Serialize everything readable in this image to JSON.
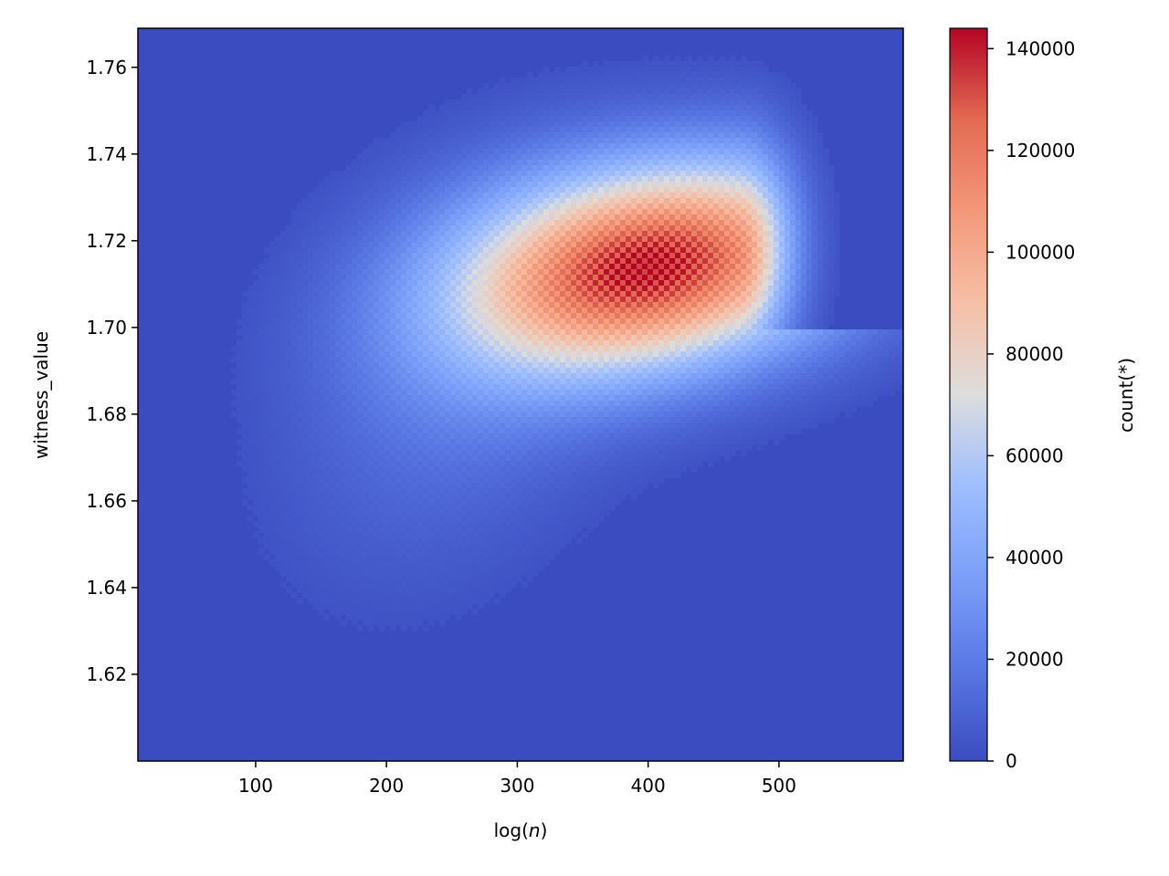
{
  "chart_data": {
    "type": "heatmap",
    "title": "",
    "xlabel": "log(n)",
    "xlabel_prefix": "log(",
    "xlabel_var": "n",
    "xlabel_suffix": ")",
    "ylabel": "witness_value",
    "xlim": [
      10,
      595
    ],
    "ylim": [
      1.6,
      1.769
    ],
    "x_ticks": [
      100,
      200,
      300,
      400,
      500
    ],
    "x_tick_labels": [
      "100",
      "200",
      "300",
      "400",
      "500"
    ],
    "y_ticks": [
      1.62,
      1.64,
      1.66,
      1.68,
      1.7,
      1.72,
      1.74,
      1.76
    ],
    "y_tick_labels": [
      "1.62",
      "1.64",
      "1.66",
      "1.68",
      "1.70",
      "1.72",
      "1.74",
      "1.76"
    ],
    "grid": false,
    "colormap": "coolwarm",
    "colorbar": {
      "label": "count(*)",
      "range": [
        0,
        144000
      ],
      "ticks": [
        0,
        20000,
        40000,
        60000,
        80000,
        100000,
        120000,
        140000
      ],
      "tick_labels": [
        "0",
        "20000",
        "40000",
        "60000",
        "80000",
        "100000",
        "120000",
        "140000"
      ]
    },
    "density": {
      "peak_x": 405,
      "peak_y": 1.714,
      "peak_count": 143000,
      "background_count": 0
    },
    "colors": {
      "low": "#3b4cc0",
      "mid": "#dddddd",
      "high": "#b40426"
    }
  }
}
